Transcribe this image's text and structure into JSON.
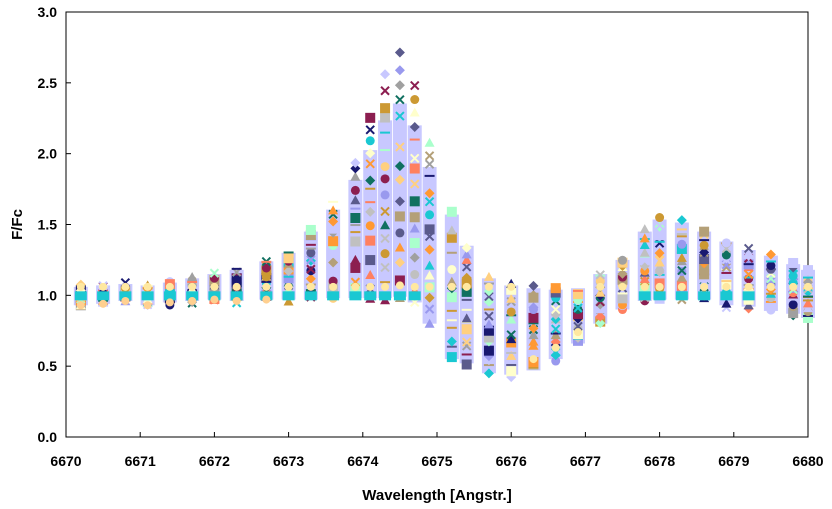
{
  "chart_data": {
    "type": "scatter",
    "title": "",
    "xlabel": "Wavelength [Angstr.]",
    "ylabel": "F/Fc",
    "xlim": [
      6670,
      6680
    ],
    "ylim": [
      0.0,
      3.0
    ],
    "x_ticks": [
      "6670",
      "6671",
      "6672",
      "6673",
      "6674",
      "6675",
      "6676",
      "6677",
      "6678",
      "6679",
      "6680"
    ],
    "y_ticks": [
      "0.0",
      "0.5",
      "1.0",
      "1.5",
      "2.0",
      "2.5",
      "3.0"
    ],
    "grid": false,
    "legend": "none",
    "wavelengths": [
      6670.2,
      6670.5,
      6670.8,
      6671.1,
      6671.4,
      6671.7,
      6672.0,
      6672.3,
      6672.7,
      6673.0,
      6673.3,
      6673.6,
      6673.9,
      6674.1,
      6674.3,
      6674.5,
      6674.7,
      6674.9,
      6675.2,
      6675.4,
      6675.7,
      6676.0,
      6676.3,
      6676.6,
      6676.9,
      6677.2,
      6677.5,
      6677.8,
      6678.0,
      6678.3,
      6678.6,
      6678.9,
      6679.2,
      6679.5,
      6679.8,
      6680.0
    ],
    "envelope_low": [
      0.93,
      0.94,
      0.96,
      0.93,
      0.95,
      0.96,
      0.97,
      0.96,
      0.97,
      0.97,
      0.97,
      0.98,
      0.98,
      0.98,
      0.98,
      0.99,
      0.95,
      0.8,
      0.55,
      0.52,
      0.45,
      0.44,
      0.47,
      0.55,
      0.66,
      0.8,
      0.9,
      0.96,
      0.97,
      0.97,
      0.97,
      0.93,
      0.92,
      0.89,
      0.87,
      0.84
    ],
    "envelope_high": [
      1.06,
      1.07,
      1.08,
      1.07,
      1.09,
      1.12,
      1.15,
      1.18,
      1.24,
      1.3,
      1.45,
      1.65,
      1.95,
      2.25,
      2.55,
      2.72,
      2.5,
      2.08,
      1.6,
      1.35,
      1.12,
      1.07,
      1.05,
      1.04,
      1.05,
      1.15,
      1.25,
      1.45,
      1.55,
      1.52,
      1.45,
      1.38,
      1.32,
      1.28,
      1.22,
      1.18
    ],
    "series_colors": [
      "#1ac8d2",
      "#c8c8ff",
      "#c0c0c0",
      "#5a5a8c",
      "#8c1e50",
      "#191970",
      "#ff8060",
      "#ffd080",
      "#a0a0a0",
      "#b4a078",
      "#ff9933",
      "#107060",
      "#cc9933",
      "#9999ee",
      "#ffffcc",
      "#aaffcc"
    ]
  }
}
